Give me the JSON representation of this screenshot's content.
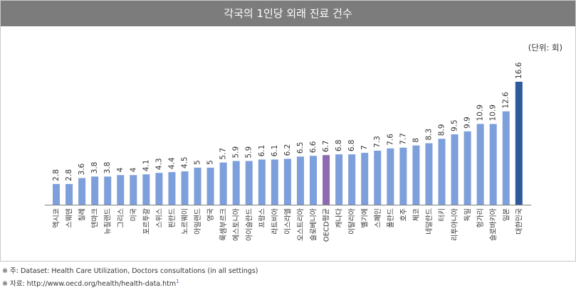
{
  "chart_data": {
    "type": "bar",
    "title": "각국의 1인당 외래 진료 건수",
    "unit_label": "(단위: 회)",
    "categories": [
      "멕시코",
      "스웨덴",
      "칠레",
      "덴마크",
      "뉴질랜드",
      "그리스",
      "미국",
      "포르투갈",
      "스위스",
      "핀란드",
      "노르웨이",
      "아일랜드",
      "영국",
      "룩셈부르크",
      "에스토니아",
      "아이슬란드",
      "프랑스",
      "라트비아",
      "이스라엘",
      "오스트리아",
      "슬로베니아",
      "OECD평균",
      "캐나다",
      "이탈리아",
      "벨기에",
      "스페인",
      "폴란드",
      "호주",
      "체코",
      "네덜란드",
      "터키",
      "리투아니아",
      "독일",
      "헝가리",
      "슬로바키아",
      "일본",
      "대한민국"
    ],
    "values": [
      2.8,
      2.8,
      3.6,
      3.8,
      3.8,
      4,
      4,
      4.1,
      4.3,
      4.4,
      4.5,
      5,
      5,
      5.7,
      5.9,
      5.9,
      6.1,
      6.1,
      6.2,
      6.5,
      6.6,
      6.7,
      6.8,
      6.8,
      7,
      7.3,
      7.6,
      7.7,
      8,
      8.3,
      8.9,
      9.5,
      9.9,
      10.9,
      10.9,
      12.6,
      16.6
    ],
    "ylim": [
      0,
      16.6
    ],
    "grid": false,
    "colors": {
      "default": "#7d9fdb",
      "oecd_average": "#8c6bb0",
      "korea": "#2e5a9c"
    }
  },
  "footnotes": {
    "note": "※ 주: Dataset: Health Care Utilization, Doctors consultations (in all settings)",
    "source": "※ 자료: http://www.oecd.org/health/health-data.htm",
    "source_mark": "1"
  }
}
